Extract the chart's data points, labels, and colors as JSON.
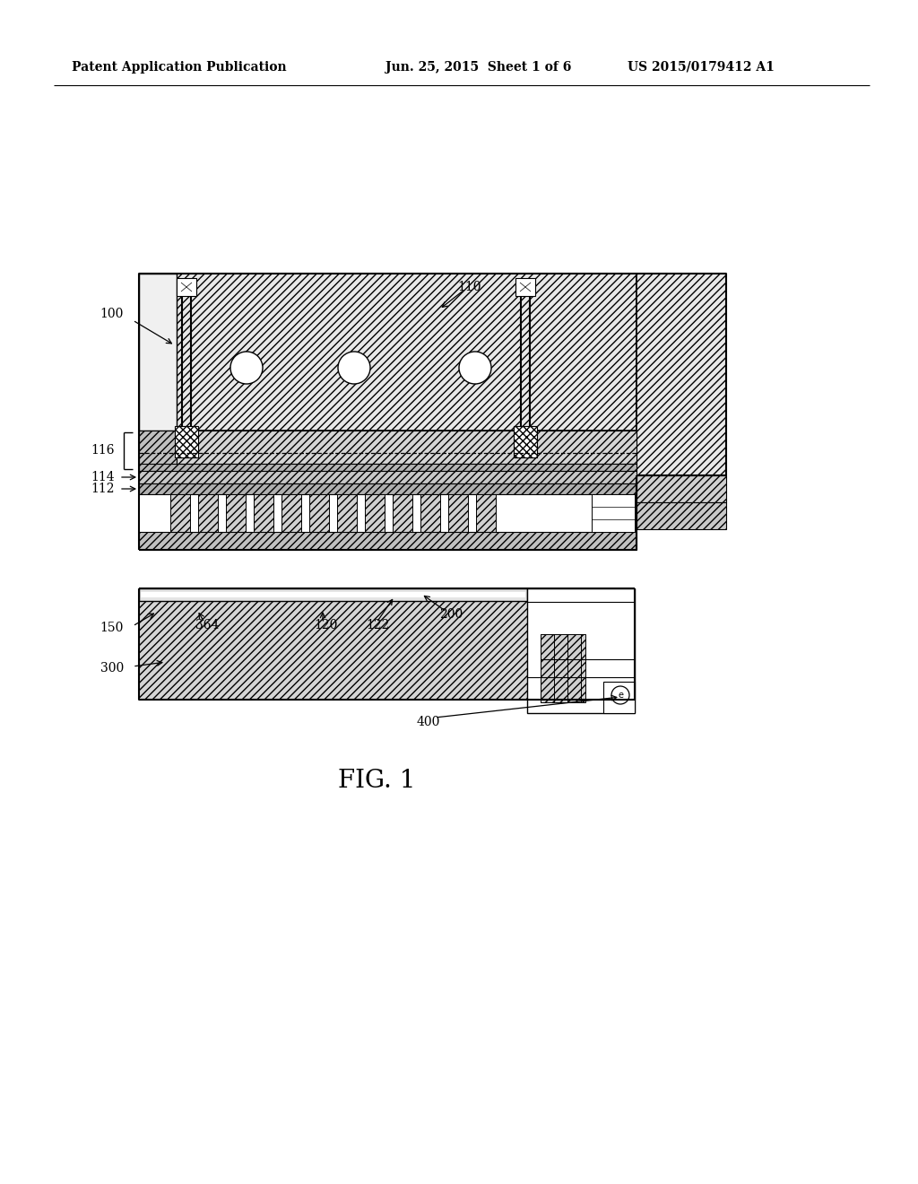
{
  "bg_color": "#ffffff",
  "header_left": "Patent Application Publication",
  "header_center": "Jun. 25, 2015  Sheet 1 of 6",
  "header_right": "US 2015/0179412 A1",
  "fig_label": "FIG. 1"
}
